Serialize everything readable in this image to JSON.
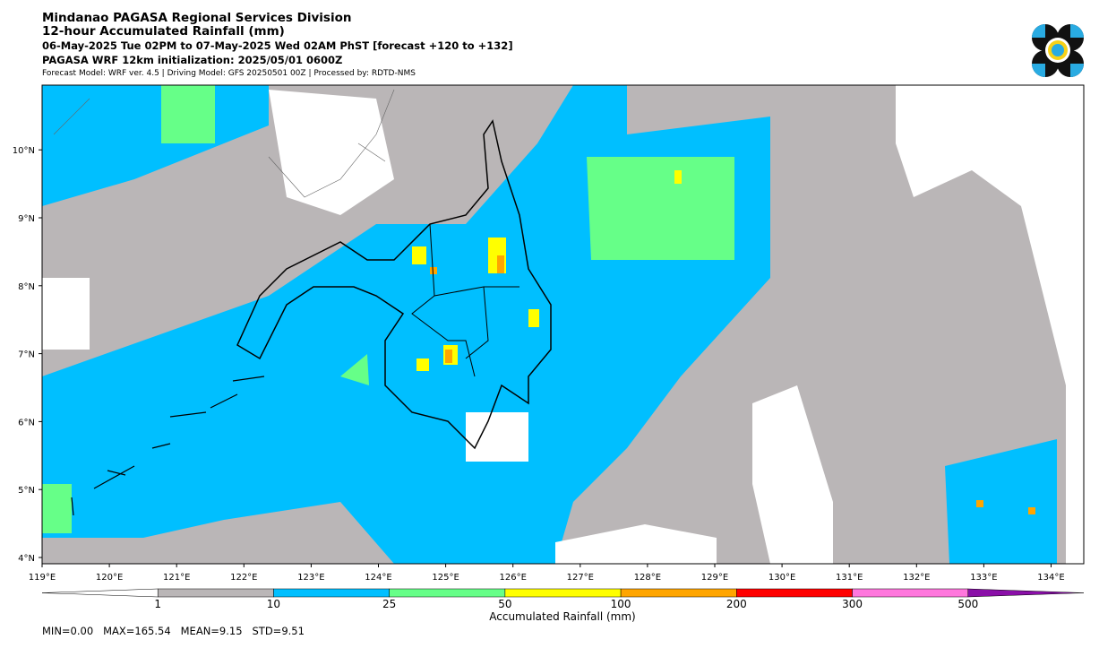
{
  "header": {
    "title": "Mindanao PAGASA Regional Services Division",
    "subtitle": "12-hour Accumulated Rainfall (mm)",
    "period": "06-May-2025 Tue 02PM to 07-May-2025 Wed 02AM PhST [forecast +120 to +132]",
    "init": "PAGASA WRF 12km initialization: 2025/05/01 0600Z",
    "credits": "Forecast Model: WRF ver. 4.5 | Driving Model: GFS 20250501 00Z | Processed by: RDTD-NMS"
  },
  "map": {
    "lat_labels": [
      "4°N",
      "5°N",
      "6°N",
      "7°N",
      "8°N",
      "9°N",
      "10°N"
    ],
    "lon_labels": [
      "119°E",
      "120°E",
      "121°E",
      "122°E",
      "123°E",
      "124°E",
      "125°E",
      "126°E",
      "127°E",
      "128°E",
      "129°E",
      "130°E",
      "131°E",
      "132°E",
      "133°E",
      "134°E"
    ]
  },
  "colorbar": {
    "ticks": [
      "1",
      "10",
      "25",
      "50",
      "100",
      "200",
      "300",
      "500"
    ],
    "colors": [
      "#ffffff",
      "#bab6b7",
      "#00bfff",
      "#66ff88",
      "#ffff00",
      "#ffa500",
      "#ff0000",
      "#ff77dd",
      "#8a0fa8"
    ],
    "label": "Accumulated Rainfall (mm)"
  },
  "stats": "MIN=0.00   MAX=165.54   MEAN=9.15   STD=9.51"
}
